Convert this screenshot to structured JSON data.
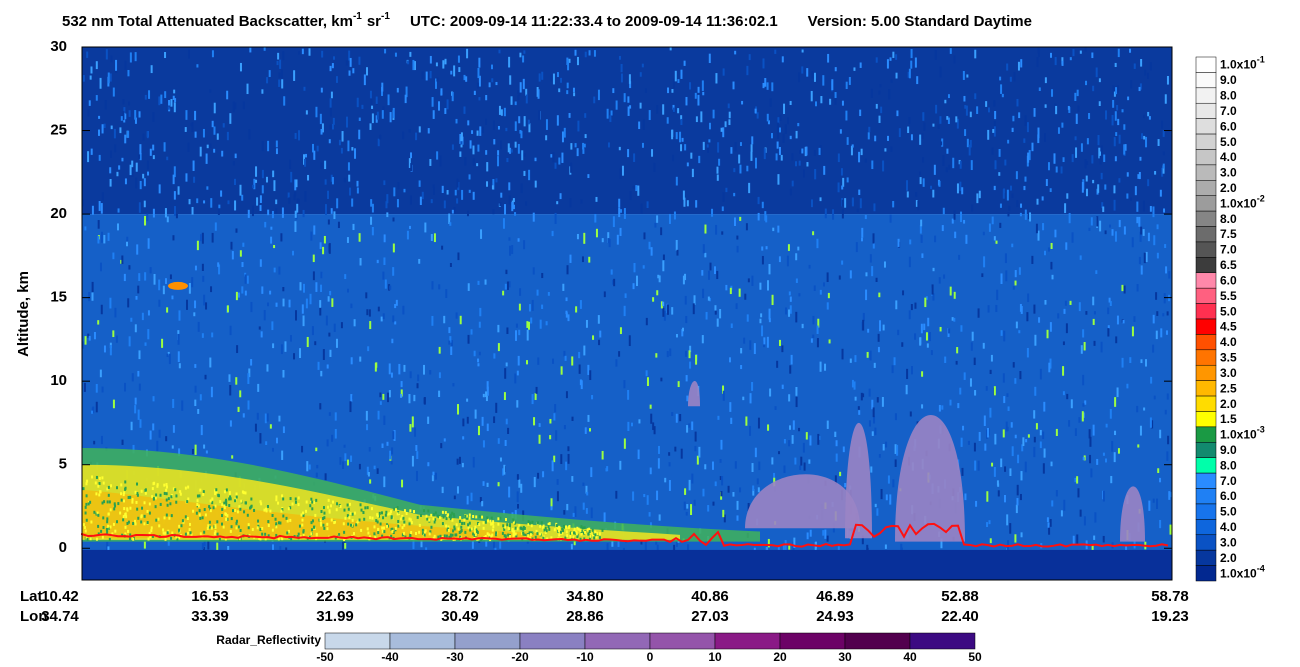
{
  "chart_data": {
    "type": "heatmap",
    "title": {
      "main": "532 nm Total Attenuated Backscatter, km",
      "unit_exp": "-1",
      "unit2": "sr",
      "unit2_exp": "-1",
      "utc": "UTC:  2009-09-14 11:22:33.4  to  2009-09-14 11:36:02.1",
      "version": "Version: 5.00  Standard  Daytime"
    },
    "ylabel": "Altitude, km",
    "ylim": [
      -1.9,
      30
    ],
    "yticks": [
      0,
      5,
      10,
      15,
      20,
      25,
      30
    ],
    "xrows": [
      {
        "name": "Lat",
        "ticks": [
          10.42,
          16.53,
          22.63,
          28.72,
          {
            "value": 34.8,
            "label": "34.80"
          },
          40.86,
          46.89,
          52.88,
          58.78
        ]
      },
      {
        "name": "Lon",
        "ticks": [
          34.74,
          33.39,
          31.99,
          30.49,
          28.86,
          27.03,
          24.93,
          {
            "value": 22.4,
            "label": "22.40"
          },
          19.23
        ]
      }
    ],
    "colorbar": {
      "labels": [
        {
          "label": "1.0x10",
          "exp": "-1"
        },
        {
          "label": "9.0"
        },
        {
          "label": "8.0"
        },
        {
          "label": "7.0"
        },
        {
          "label": "6.0"
        },
        {
          "label": "5.0"
        },
        {
          "label": "4.0"
        },
        {
          "label": "3.0"
        },
        {
          "label": "2.0"
        },
        {
          "label": "1.0x10",
          "exp": "-2"
        },
        {
          "label": "8.0"
        },
        {
          "label": "7.5"
        },
        {
          "label": "7.0"
        },
        {
          "label": "6.5"
        },
        {
          "label": "6.0"
        },
        {
          "label": "5.5"
        },
        {
          "label": "5.0"
        },
        {
          "label": "4.5"
        },
        {
          "label": "4.0"
        },
        {
          "label": "3.5"
        },
        {
          "label": "3.0"
        },
        {
          "label": "2.5"
        },
        {
          "label": "2.0"
        },
        {
          "label": "1.5"
        },
        {
          "label": "1.0x10",
          "exp": "-3"
        },
        {
          "label": "9.0"
        },
        {
          "label": "8.0"
        },
        {
          "label": "7.0"
        },
        {
          "label": "6.0"
        },
        {
          "label": "5.0"
        },
        {
          "label": "4.0"
        },
        {
          "label": "3.0"
        },
        {
          "label": "2.0"
        },
        {
          "label": "1.0x10",
          "exp": "-4"
        }
      ],
      "colors": [
        "#ffffff",
        "#fafafa",
        "#f2f2f2",
        "#e8e8e8",
        "#dedede",
        "#d2d2d2",
        "#c6c6c6",
        "#bababa",
        "#acacac",
        "#9c9c9c",
        "#858585",
        "#6c6c6c",
        "#555555",
        "#3c3c3c",
        "#ff88aa",
        "#ff6080",
        "#ff3050",
        "#ff0000",
        "#ff5000",
        "#ff7400",
        "#ff9600",
        "#ffb800",
        "#ffdc00",
        "#ffff00",
        "#1a9a44",
        "#128a6e",
        "#00ffaa",
        "#2a8cff",
        "#1f80f4",
        "#1774ec",
        "#0e66dd",
        "#0a52c4",
        "#06379e",
        "#022890"
      ]
    },
    "radar_colorbar": {
      "name": "Radar_Reflectivity",
      "ticks": [
        -50,
        -40,
        -30,
        -20,
        -10,
        0,
        10,
        20,
        30,
        40,
        50
      ],
      "colors": [
        "#c8d8ea",
        "#a8bcdc",
        "#94a0cc",
        "#8a80c2",
        "#9268b6",
        "#9454aa",
        "#8a1a86",
        "#6c0266",
        "#52004e",
        "#3c0a82"
      ]
    }
  }
}
